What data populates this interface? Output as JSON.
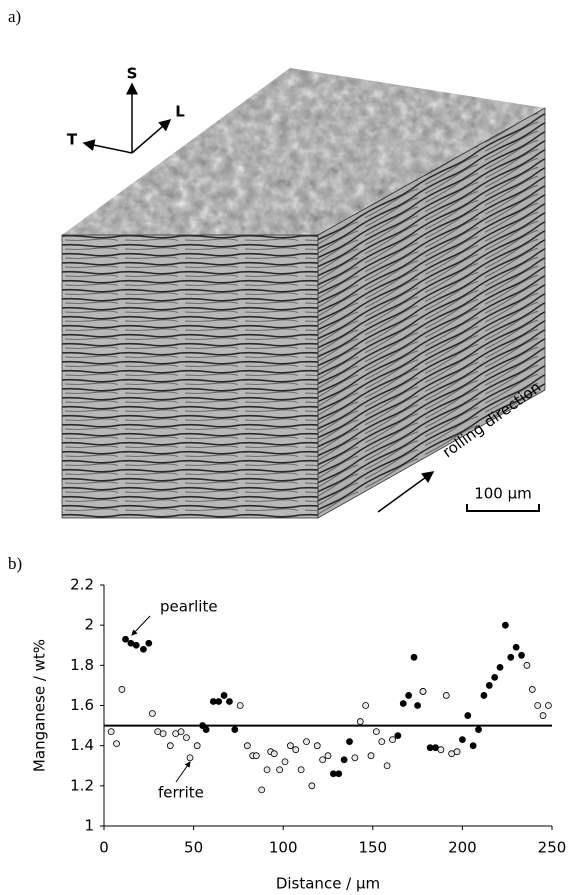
{
  "panel_labels": [
    "a)",
    "b)"
  ],
  "micrograph": {
    "axis_labels": [
      "S",
      "T",
      "L"
    ],
    "annotation": "rolling direction",
    "scale_bar": "100 µm"
  },
  "chart_data": {
    "type": "scatter",
    "xlabel": "Distance / µm",
    "ylabel": "Manganese / wt%",
    "xlim": [
      0,
      250
    ],
    "xticks": [
      0,
      50,
      100,
      150,
      200,
      250
    ],
    "ylim": [
      1,
      2.2
    ],
    "yticks": [
      1,
      1.2,
      1.4,
      1.6,
      1.8,
      2,
      2.2
    ],
    "hline": 1.5,
    "annotations": [
      "pearlite",
      "ferrite"
    ],
    "series": [
      {
        "color": "#000000",
        "marker": "filled",
        "x": [
          12,
          15,
          18,
          22,
          25,
          55,
          57,
          61,
          64,
          67,
          70,
          73,
          128,
          131,
          134,
          137,
          164,
          167,
          170,
          173,
          175,
          178,
          182,
          185,
          200,
          203,
          206,
          209,
          212,
          215,
          218,
          221,
          224,
          227,
          230,
          233
        ],
        "values": [
          1.93,
          1.91,
          1.9,
          1.88,
          1.91,
          1.5,
          1.48,
          1.62,
          1.62,
          1.65,
          1.62,
          1.48,
          1.26,
          1.26,
          1.33,
          1.42,
          1.45,
          1.61,
          1.65,
          1.84,
          1.6,
          1.67,
          1.39,
          1.39,
          1.43,
          1.55,
          1.4,
          1.48,
          1.65,
          1.7,
          1.74,
          1.79,
          2.0,
          1.84,
          1.89,
          1.85
        ]
      },
      {
        "color": "#000000",
        "marker": "open",
        "x": [
          4,
          7,
          10,
          27,
          30,
          33,
          37,
          40,
          43,
          46,
          48,
          52,
          76,
          80,
          83,
          85,
          88,
          91,
          93,
          95,
          98,
          101,
          104,
          107,
          110,
          113,
          116,
          119,
          122,
          125,
          140,
          143,
          146,
          149,
          152,
          155,
          158,
          161,
          178,
          188,
          191,
          194,
          197,
          236,
          239,
          242,
          245,
          248
        ],
        "values": [
          1.47,
          1.41,
          1.68,
          1.56,
          1.47,
          1.46,
          1.4,
          1.46,
          1.47,
          1.44,
          1.34,
          1.4,
          1.6,
          1.4,
          1.35,
          1.35,
          1.18,
          1.28,
          1.37,
          1.36,
          1.28,
          1.32,
          1.4,
          1.38,
          1.28,
          1.42,
          1.2,
          1.4,
          1.33,
          1.35,
          1.34,
          1.52,
          1.6,
          1.35,
          1.47,
          1.42,
          1.3,
          1.43,
          1.67,
          1.38,
          1.65,
          1.36,
          1.37,
          1.8,
          1.68,
          1.6,
          1.55,
          1.6
        ]
      }
    ]
  }
}
